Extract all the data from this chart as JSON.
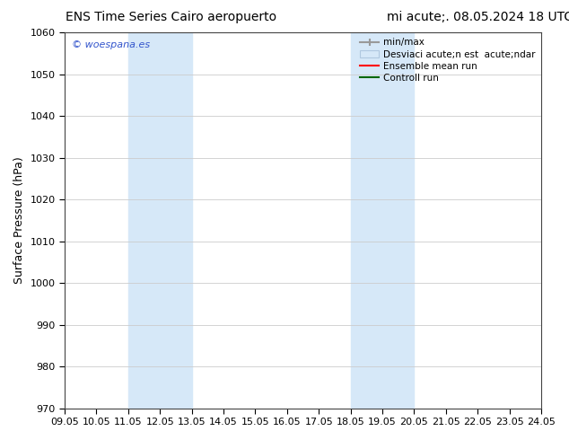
{
  "title_left": "ENS Time Series Cairo aeropuerto",
  "title_right": "mi acute;. 08.05.2024 18 UTC",
  "ylabel": "Surface Pressure (hPa)",
  "watermark": "© woespana.es",
  "ylim": [
    970,
    1060
  ],
  "yticks": [
    970,
    980,
    990,
    1000,
    1010,
    1020,
    1030,
    1040,
    1050,
    1060
  ],
  "xtick_labels": [
    "09.05",
    "10.05",
    "11.05",
    "12.05",
    "13.05",
    "14.05",
    "15.05",
    "16.05",
    "17.05",
    "18.05",
    "19.05",
    "20.05",
    "21.05",
    "22.05",
    "23.05",
    "24.05"
  ],
  "xlim": [
    0,
    15
  ],
  "shaded_regions": [
    {
      "xmin": 2.0,
      "xmax": 4.0,
      "color": "#d6e8f8"
    },
    {
      "xmin": 9.0,
      "xmax": 11.0,
      "color": "#d6e8f8"
    }
  ],
  "legend_label_minmax": "min/max",
  "legend_label_desv": "Desviaci acute;n est  acute;ndar",
  "legend_label_ensemble": "Ensemble mean run",
  "legend_label_control": "Controll run",
  "background_color": "#ffffff",
  "grid_color": "#cccccc",
  "title_fontsize": 10,
  "tick_fontsize": 8,
  "ylabel_fontsize": 9,
  "watermark_color": "#3355cc"
}
